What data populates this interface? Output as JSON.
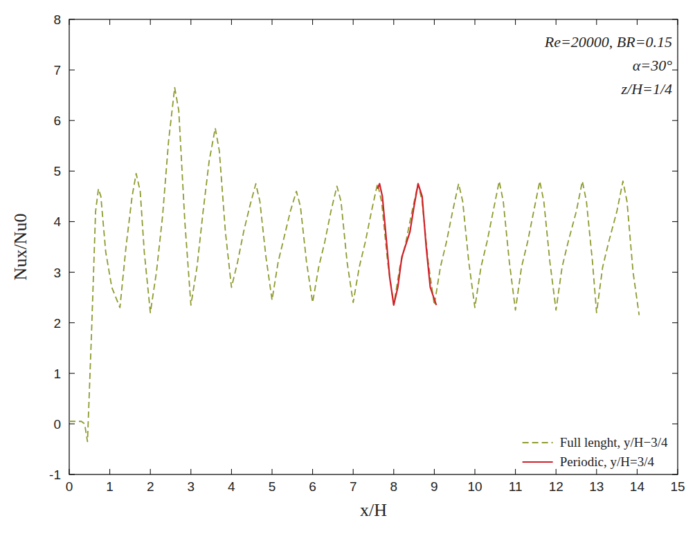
{
  "chart_data": {
    "type": "line",
    "x_label": "x/H",
    "y_label": "Nux/Nu0",
    "annotations": [
      "Re=20000, BR=0.15",
      "α=30°",
      "z/H=1/4"
    ],
    "xlim": [
      0,
      15
    ],
    "ylim": [
      -1,
      8
    ],
    "xticks": [
      0,
      1,
      2,
      3,
      4,
      5,
      6,
      7,
      8,
      9,
      10,
      11,
      12,
      13,
      14,
      15
    ],
    "yticks": [
      -1,
      0,
      1,
      2,
      3,
      4,
      5,
      6,
      7,
      8
    ],
    "grid": false,
    "legend": "lower right",
    "series": [
      {
        "name": "Full lenght, y/H−3/4",
        "color": "#8f9a2e",
        "line_style": "dashed",
        "x": [
          0,
          0.3,
          0.38,
          0.45,
          0.55,
          0.65,
          0.72,
          0.78,
          0.9,
          1.05,
          1.25,
          1.4,
          1.55,
          1.65,
          1.75,
          1.85,
          2.0,
          2.15,
          2.3,
          2.45,
          2.6,
          2.7,
          2.85,
          3.0,
          3.15,
          3.3,
          3.45,
          3.6,
          3.7,
          3.85,
          4.0,
          4.15,
          4.3,
          4.45,
          4.6,
          4.7,
          4.85,
          5.0,
          5.15,
          5.3,
          5.45,
          5.6,
          5.7,
          5.85,
          6.0,
          6.15,
          6.3,
          6.45,
          6.6,
          6.7,
          6.85,
          7.0,
          7.15,
          7.3,
          7.45,
          7.6,
          7.7,
          7.85,
          8.0,
          8.15,
          8.3,
          8.45,
          8.6,
          8.7,
          8.85,
          9.0,
          9.15,
          9.3,
          9.45,
          9.6,
          9.7,
          9.85,
          10.0,
          10.15,
          10.3,
          10.45,
          10.6,
          10.7,
          10.85,
          11.0,
          11.15,
          11.3,
          11.45,
          11.6,
          11.7,
          11.85,
          12.0,
          12.15,
          12.3,
          12.5,
          12.65,
          12.75,
          12.9,
          13.0,
          13.15,
          13.3,
          13.5,
          13.65,
          13.75,
          13.9,
          14.05
        ],
        "values": [
          0.05,
          0.05,
          0.0,
          -0.35,
          1.8,
          4.2,
          4.65,
          4.5,
          3.4,
          2.7,
          2.3,
          3.5,
          4.5,
          4.95,
          4.6,
          3.4,
          2.2,
          3.0,
          4.1,
          5.6,
          6.65,
          6.2,
          4.0,
          2.35,
          3.1,
          4.2,
          5.2,
          5.85,
          5.4,
          3.8,
          2.7,
          3.2,
          3.8,
          4.3,
          4.75,
          4.4,
          3.3,
          2.45,
          3.2,
          3.7,
          4.2,
          4.6,
          4.3,
          3.2,
          2.4,
          3.1,
          3.6,
          4.2,
          4.7,
          4.4,
          3.2,
          2.4,
          3.1,
          3.6,
          4.2,
          4.75,
          4.4,
          3.2,
          2.35,
          3.1,
          3.6,
          4.2,
          4.75,
          4.4,
          3.2,
          2.35,
          3.1,
          3.6,
          4.2,
          4.75,
          4.4,
          3.2,
          2.3,
          3.1,
          3.6,
          4.2,
          4.8,
          4.4,
          3.2,
          2.25,
          3.1,
          3.6,
          4.2,
          4.8,
          4.4,
          3.2,
          2.25,
          3.1,
          3.6,
          4.2,
          4.8,
          4.4,
          3.2,
          2.2,
          3.1,
          3.6,
          4.2,
          4.8,
          4.4,
          3.0,
          2.15
        ]
      },
      {
        "name": "Periodic, y/H=3/4",
        "color": "#d0202a",
        "line_style": "solid",
        "x": [
          7.6,
          7.65,
          7.72,
          7.8,
          7.9,
          8.0,
          8.1,
          8.2,
          8.3,
          8.4,
          8.5,
          8.6,
          8.7,
          8.8,
          8.9,
          9.05
        ],
        "values": [
          4.65,
          4.75,
          4.5,
          3.8,
          2.9,
          2.35,
          2.7,
          3.3,
          3.55,
          3.8,
          4.3,
          4.75,
          4.5,
          3.5,
          2.7,
          2.35
        ]
      }
    ]
  }
}
